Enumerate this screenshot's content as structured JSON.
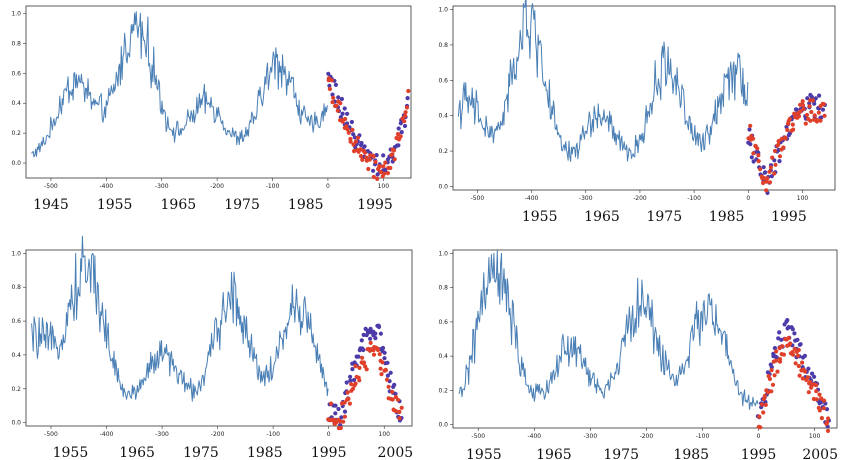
{
  "colors": {
    "line": "#4a7fb5",
    "predicted_red": "#e0402a",
    "predicted_purple": "#4b3aa8",
    "frame": "#333333"
  },
  "chart_data": [
    {
      "type": "line",
      "panel": "top-left",
      "title": "",
      "xlabel": "",
      "ylabel": "",
      "xlim": [
        -545,
        150
      ],
      "ylim": [
        -0.1,
        1.05
      ],
      "xticks": [
        "-500",
        "-400",
        "-300",
        "-200",
        "-100",
        "0",
        "100"
      ],
      "xtick_values": [
        -500,
        -400,
        -300,
        -200,
        -100,
        0,
        100
      ],
      "yticks": [
        "0.0",
        "0.2",
        "0.4",
        "0.6",
        "0.8",
        "1.0"
      ],
      "ytick_values": [
        0,
        0.2,
        0.4,
        0.6,
        0.8,
        1.0
      ],
      "year_labels": [
        "1945",
        "1955",
        "1965",
        "1975",
        "1985",
        "1995"
      ],
      "year_label_positions": [
        -500,
        -385,
        -270,
        -155,
        -40,
        85
      ],
      "history_range": [
        -535,
        0
      ],
      "cycle_peaks": [
        {
          "center": -455,
          "height": 0.55
        },
        {
          "center": -345,
          "height": 0.95
        },
        {
          "center": -220,
          "height": 0.4
        },
        {
          "center": -90,
          "height": 0.68
        },
        {
          "center": 30,
          "height": 0.6
        }
      ],
      "forecast": {
        "x_range": [
          0,
          145
        ],
        "points_per_series": 70,
        "series": [
          {
            "color": "predicted_purple",
            "peak": 0.6,
            "peak_x": 15,
            "min_x": 95,
            "min_y": -0.02,
            "end_y": 0.42
          },
          {
            "color": "predicted_red",
            "peak": 0.55,
            "peak_x": 15,
            "min_x": 95,
            "min_y": -0.05,
            "end_y": 0.45
          }
        ]
      }
    },
    {
      "type": "line",
      "panel": "top-right",
      "title": "",
      "xlabel": "",
      "ylabel": "",
      "xlim": [
        -545,
        160
      ],
      "ylim": [
        -0.02,
        1.02
      ],
      "xticks": [
        "-500",
        "-400",
        "-300",
        "-200",
        "-100",
        "0",
        "100"
      ],
      "xtick_values": [
        -500,
        -400,
        -300,
        -200,
        -100,
        0,
        100
      ],
      "yticks": [
        "0.0",
        "0.2",
        "0.4",
        "0.6",
        "0.8",
        "1.0"
      ],
      "ytick_values": [
        0,
        0.2,
        0.4,
        0.6,
        0.8,
        1.0
      ],
      "year_labels": [
        "1955",
        "1965",
        "1975",
        "1985",
        "1995"
      ],
      "year_label_positions": [
        -385,
        -270,
        -155,
        -40,
        75
      ],
      "history_range": [
        -535,
        0
      ],
      "cycle_peaks": [
        {
          "center": -520,
          "height": 0.48
        },
        {
          "center": -405,
          "height": 0.95
        },
        {
          "center": -275,
          "height": 0.4
        },
        {
          "center": -150,
          "height": 0.7
        },
        {
          "center": -25,
          "height": 0.7
        }
      ],
      "forecast": {
        "x_range": [
          0,
          140
        ],
        "points_per_series": 70,
        "series": [
          {
            "color": "predicted_purple",
            "peak": 0.45,
            "peak_x": 110,
            "min_x": 35,
            "min_y": 0.02,
            "start_y": 0.28
          },
          {
            "color": "predicted_red",
            "peak": 0.42,
            "peak_x": 110,
            "min_x": 35,
            "min_y": 0.02,
            "start_y": 0.3
          }
        ]
      }
    },
    {
      "type": "line",
      "panel": "bottom-left",
      "title": "",
      "xlabel": "",
      "ylabel": "",
      "xlim": [
        -545,
        150
      ],
      "ylim": [
        -0.02,
        1.02
      ],
      "xticks": [
        "-500",
        "-400",
        "-300",
        "-200",
        "-100",
        "0",
        "100"
      ],
      "xtick_values": [
        -500,
        -400,
        -300,
        -200,
        -100,
        0,
        100
      ],
      "yticks": [
        "0.0",
        "0.2",
        "0.4",
        "0.6",
        "0.8",
        "1.0"
      ],
      "ytick_values": [
        0,
        0.2,
        0.4,
        0.6,
        0.8,
        1.0
      ],
      "year_labels": [
        "1955",
        "1965",
        "1975",
        "1985",
        "1995",
        "2005"
      ],
      "year_label_positions": [
        -465,
        -345,
        -230,
        -115,
        0,
        120
      ],
      "history_range": [
        -535,
        0
      ],
      "cycle_peaks": [
        {
          "center": -530,
          "height": 0.5
        },
        {
          "center": -435,
          "height": 0.95
        },
        {
          "center": -300,
          "height": 0.4
        },
        {
          "center": -175,
          "height": 0.75
        },
        {
          "center": -55,
          "height": 0.7
        }
      ],
      "forecast": {
        "x_range": [
          0,
          130
        ],
        "points_per_series": 70,
        "series": [
          {
            "color": "predicted_purple",
            "peak": 0.55,
            "peak_x": 85,
            "min_x": 20,
            "min_y": 0.0,
            "start_y": 0.08
          },
          {
            "color": "predicted_red",
            "peak": 0.42,
            "peak_x": 85,
            "min_x": 20,
            "min_y": 0.0,
            "start_y": 0.08
          }
        ]
      }
    },
    {
      "type": "line",
      "panel": "bottom-right",
      "title": "",
      "xlabel": "",
      "ylabel": "",
      "xlim": [
        -545,
        140
      ],
      "ylim": [
        -0.02,
        1.02
      ],
      "xticks": [
        "-500",
        "-400",
        "-300",
        "-200",
        "-100",
        "0",
        "100"
      ],
      "xtick_values": [
        -500,
        -400,
        -300,
        -200,
        -100,
        0,
        100
      ],
      "yticks": [
        "0.0",
        "0.2",
        "0.4",
        "0.6",
        "0.8",
        "1.0"
      ],
      "ytick_values": [
        0,
        0.2,
        0.4,
        0.6,
        0.8,
        1.0
      ],
      "year_labels": [
        "1955",
        "1965",
        "1975",
        "1985",
        "1995",
        "2005"
      ],
      "year_label_positions": [
        -490,
        -365,
        -245,
        -120,
        0,
        110
      ],
      "history_range": [
        -535,
        0
      ],
      "cycle_peaks": [
        {
          "center": -470,
          "height": 0.92
        },
        {
          "center": -335,
          "height": 0.45
        },
        {
          "center": -210,
          "height": 0.72
        },
        {
          "center": -90,
          "height": 0.7
        },
        {
          "center": 55,
          "height": 0.45
        }
      ],
      "forecast": {
        "x_range": [
          0,
          125
        ],
        "points_per_series": 70,
        "series": [
          {
            "color": "predicted_purple",
            "peak": 0.55,
            "peak_x": 55,
            "min_x": 0,
            "min_y": 0.0,
            "start_y": 0.02
          },
          {
            "color": "predicted_red",
            "peak": 0.45,
            "peak_x": 55,
            "min_x": 0,
            "min_y": 0.0,
            "start_y": 0.02
          }
        ]
      }
    }
  ]
}
